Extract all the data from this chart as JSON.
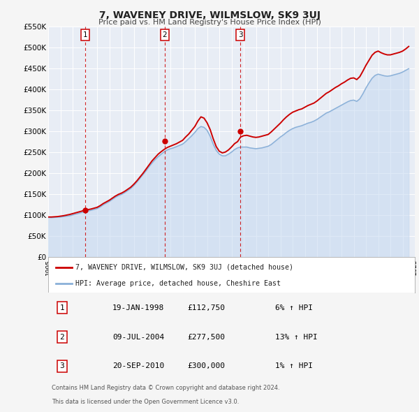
{
  "title": "7, WAVENEY DRIVE, WILMSLOW, SK9 3UJ",
  "subtitle": "Price paid vs. HM Land Registry's House Price Index (HPI)",
  "background_color": "#f5f5f5",
  "plot_bg_color": "#e8edf5",
  "grid_color": "#ffffff",
  "hpi_line_color": "#8ab0d8",
  "hpi_fill_color": "#c5d8f0",
  "price_line_color": "#cc0000",
  "marker_color": "#cc0000",
  "ylim": [
    0,
    550000
  ],
  "yticks": [
    0,
    50000,
    100000,
    150000,
    200000,
    250000,
    300000,
    350000,
    400000,
    450000,
    500000,
    550000
  ],
  "ytick_labels": [
    "£0",
    "£50K",
    "£100K",
    "£150K",
    "£200K",
    "£250K",
    "£300K",
    "£350K",
    "£400K",
    "£450K",
    "£500K",
    "£550K"
  ],
  "xmin_year": 1995,
  "xmax_year": 2025,
  "xtick_years": [
    1995,
    1996,
    1997,
    1998,
    1999,
    2000,
    2001,
    2002,
    2003,
    2004,
    2005,
    2006,
    2007,
    2008,
    2009,
    2010,
    2011,
    2012,
    2013,
    2014,
    2015,
    2016,
    2017,
    2018,
    2019,
    2020,
    2021,
    2022,
    2023,
    2024,
    2025
  ],
  "sale_points": [
    {
      "num": "1",
      "year": 1998.05,
      "price": 112750,
      "vline_x": 1998.05
    },
    {
      "num": "2",
      "year": 2004.52,
      "price": 277500,
      "vline_x": 2004.52
    },
    {
      "num": "3",
      "year": 2010.72,
      "price": 300000,
      "vline_x": 2010.72
    }
  ],
  "table_data": [
    {
      "num": "1",
      "date": "19-JAN-1998",
      "price": "£112,750",
      "hpi": "6% ↑ HPI"
    },
    {
      "num": "2",
      "date": "09-JUL-2004",
      "price": "£277,500",
      "hpi": "13% ↑ HPI"
    },
    {
      "num": "3",
      "date": "20-SEP-2010",
      "price": "£300,000",
      "hpi": "1% ↑ HPI"
    }
  ],
  "legend_line1": "7, WAVENEY DRIVE, WILMSLOW, SK9 3UJ (detached house)",
  "legend_line2": "HPI: Average price, detached house, Cheshire East",
  "footer_line1": "Contains HM Land Registry data © Crown copyright and database right 2024.",
  "footer_line2": "This data is licensed under the Open Government Licence v3.0.",
  "hpi_data_x": [
    1995.0,
    1995.25,
    1995.5,
    1995.75,
    1996.0,
    1996.25,
    1996.5,
    1996.75,
    1997.0,
    1997.25,
    1997.5,
    1997.75,
    1998.0,
    1998.25,
    1998.5,
    1998.75,
    1999.0,
    1999.25,
    1999.5,
    1999.75,
    2000.0,
    2000.25,
    2000.5,
    2000.75,
    2001.0,
    2001.25,
    2001.5,
    2001.75,
    2002.0,
    2002.25,
    2002.5,
    2002.75,
    2003.0,
    2003.25,
    2003.5,
    2003.75,
    2004.0,
    2004.25,
    2004.5,
    2004.75,
    2005.0,
    2005.25,
    2005.5,
    2005.75,
    2006.0,
    2006.25,
    2006.5,
    2006.75,
    2007.0,
    2007.25,
    2007.5,
    2007.75,
    2008.0,
    2008.25,
    2008.5,
    2008.75,
    2009.0,
    2009.25,
    2009.5,
    2009.75,
    2010.0,
    2010.25,
    2010.5,
    2010.75,
    2011.0,
    2011.25,
    2011.5,
    2011.75,
    2012.0,
    2012.25,
    2012.5,
    2012.75,
    2013.0,
    2013.25,
    2013.5,
    2013.75,
    2014.0,
    2014.25,
    2014.5,
    2014.75,
    2015.0,
    2015.25,
    2015.5,
    2015.75,
    2016.0,
    2016.25,
    2016.5,
    2016.75,
    2017.0,
    2017.25,
    2017.5,
    2017.75,
    2018.0,
    2018.25,
    2018.5,
    2018.75,
    2019.0,
    2019.25,
    2019.5,
    2019.75,
    2020.0,
    2020.25,
    2020.5,
    2020.75,
    2021.0,
    2021.25,
    2021.5,
    2021.75,
    2022.0,
    2022.25,
    2022.5,
    2022.75,
    2023.0,
    2023.25,
    2023.5,
    2023.75,
    2024.0,
    2024.25,
    2024.5
  ],
  "hpi_data_y": [
    95000,
    94500,
    95000,
    95500,
    96000,
    97000,
    98000,
    99000,
    101000,
    103000,
    105000,
    107000,
    108000,
    110000,
    112000,
    114000,
    116000,
    120000,
    125000,
    129000,
    133000,
    138000,
    143000,
    147000,
    150000,
    154000,
    159000,
    164000,
    171000,
    179000,
    188000,
    197000,
    206000,
    216000,
    225000,
    233000,
    240000,
    246000,
    252000,
    256000,
    259000,
    261000,
    264000,
    267000,
    270000,
    276000,
    283000,
    290000,
    298000,
    307000,
    312000,
    310000,
    303000,
    289000,
    270000,
    255000,
    246000,
    242000,
    242000,
    246000,
    251000,
    257000,
    261000,
    263000,
    263000,
    263000,
    261000,
    260000,
    259000,
    260000,
    261000,
    263000,
    265000,
    269000,
    275000,
    281000,
    287000,
    292000,
    298000,
    303000,
    307000,
    310000,
    312000,
    314000,
    317000,
    320000,
    322000,
    325000,
    329000,
    334000,
    339000,
    344000,
    347000,
    351000,
    355000,
    359000,
    363000,
    367000,
    371000,
    374000,
    375000,
    372000,
    378000,
    390000,
    404000,
    416000,
    427000,
    434000,
    437000,
    435000,
    433000,
    432000,
    433000,
    435000,
    437000,
    439000,
    442000,
    446000,
    450000
  ],
  "price_line_x": [
    1995.0,
    1995.25,
    1995.5,
    1995.75,
    1996.0,
    1996.25,
    1996.5,
    1996.75,
    1997.0,
    1997.25,
    1997.5,
    1997.75,
    1998.0,
    1998.25,
    1998.5,
    1998.75,
    1999.0,
    1999.25,
    1999.5,
    1999.75,
    2000.0,
    2000.25,
    2000.5,
    2000.75,
    2001.0,
    2001.25,
    2001.5,
    2001.75,
    2002.0,
    2002.25,
    2002.5,
    2002.75,
    2003.0,
    2003.25,
    2003.5,
    2003.75,
    2004.0,
    2004.25,
    2004.5,
    2004.75,
    2005.0,
    2005.25,
    2005.5,
    2005.75,
    2006.0,
    2006.25,
    2006.5,
    2006.75,
    2007.0,
    2007.25,
    2007.5,
    2007.75,
    2008.0,
    2008.25,
    2008.5,
    2008.75,
    2009.0,
    2009.25,
    2009.5,
    2009.75,
    2010.0,
    2010.25,
    2010.5,
    2010.75,
    2011.0,
    2011.25,
    2011.5,
    2011.75,
    2012.0,
    2012.25,
    2012.5,
    2012.75,
    2013.0,
    2013.25,
    2013.5,
    2013.75,
    2014.0,
    2014.25,
    2014.5,
    2014.75,
    2015.0,
    2015.25,
    2015.5,
    2015.75,
    2016.0,
    2016.25,
    2016.5,
    2016.75,
    2017.0,
    2017.25,
    2017.5,
    2017.75,
    2018.0,
    2018.25,
    2018.5,
    2018.75,
    2019.0,
    2019.25,
    2019.5,
    2019.75,
    2020.0,
    2020.25,
    2020.5,
    2020.75,
    2021.0,
    2021.25,
    2021.5,
    2021.75,
    2022.0,
    2022.25,
    2022.5,
    2022.75,
    2023.0,
    2023.25,
    2023.5,
    2023.75,
    2024.0,
    2024.25,
    2024.5
  ],
  "price_line_y": [
    96000,
    96000,
    96500,
    97000,
    98000,
    99000,
    100500,
    102000,
    104000,
    106000,
    108000,
    110000,
    112750,
    113500,
    115000,
    117000,
    119000,
    123000,
    128000,
    132000,
    136000,
    141000,
    146000,
    150000,
    153000,
    157000,
    162000,
    167000,
    174000,
    182000,
    191000,
    200000,
    210000,
    220000,
    230000,
    238000,
    246000,
    252000,
    257500,
    262000,
    265000,
    268000,
    271000,
    275000,
    279000,
    287000,
    294000,
    303000,
    312000,
    325000,
    335000,
    332000,
    321000,
    305000,
    283000,
    264000,
    253000,
    249000,
    251000,
    256000,
    263000,
    271000,
    276000,
    287000,
    290000,
    291000,
    289000,
    287000,
    286000,
    287000,
    289000,
    291000,
    293000,
    299000,
    306000,
    313000,
    320000,
    328000,
    335000,
    341000,
    346000,
    349000,
    352000,
    354000,
    358000,
    362000,
    365000,
    368000,
    373000,
    379000,
    385000,
    391000,
    395000,
    400000,
    405000,
    409000,
    414000,
    418000,
    423000,
    427000,
    428000,
    424000,
    431000,
    444000,
    458000,
    470000,
    482000,
    489000,
    492000,
    488000,
    485000,
    483000,
    483000,
    485000,
    487000,
    489000,
    492000,
    497000,
    503000
  ]
}
